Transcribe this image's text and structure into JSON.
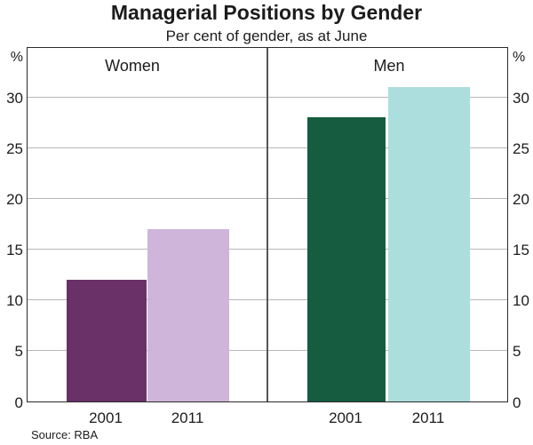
{
  "title": "Managerial Positions by Gender",
  "subtitle": "Per cent of gender, as at June",
  "source": "Source: RBA",
  "axis": {
    "unit_left": "%",
    "unit_right": "%"
  },
  "colors": {
    "women_2001": "#6a3068",
    "women_2011": "#cfb5da",
    "men_2001": "#155c40",
    "men_2011": "#addede",
    "gridline": "#b7b7b7",
    "frame": "#2a2a2a",
    "panel_divider": "#55565a"
  },
  "chart_data": {
    "type": "bar",
    "title": "Managerial Positions by Gender",
    "subtitle": "Per cent of gender, as at June",
    "ylabel": "%",
    "ylim": [
      0,
      35
    ],
    "yticks": [
      0,
      5,
      10,
      15,
      20,
      25,
      30
    ],
    "grid": true,
    "legend_position": "none",
    "panels": [
      {
        "label": "Women",
        "categories": [
          "2001",
          "2011"
        ],
        "values": [
          12,
          17
        ],
        "colors": [
          "#6a3068",
          "#cfb5da"
        ]
      },
      {
        "label": "Men",
        "categories": [
          "2001",
          "2011"
        ],
        "values": [
          28,
          31
        ],
        "colors": [
          "#155c40",
          "#addede"
        ]
      }
    ],
    "source": "Source: RBA"
  }
}
